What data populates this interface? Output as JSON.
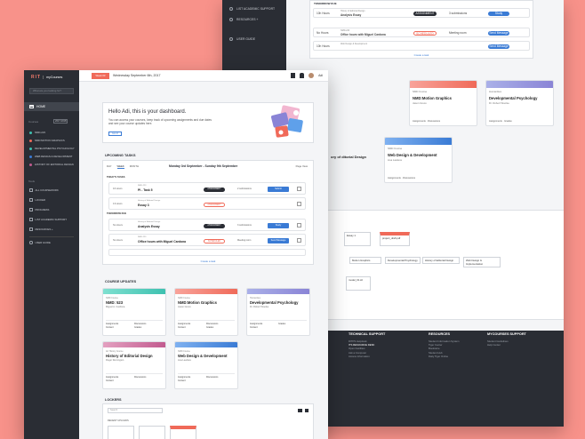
{
  "colors": {
    "accent": "#f06a59",
    "blue": "#3a7bd5",
    "sidebar": "#2a2d34",
    "bg": "#f8928a"
  },
  "back": {
    "sidebar_items": [
      "LIST ACADEMIC SUPPORT",
      "RESOURCES +",
      "USER GUIDE"
    ],
    "tomorrow_label": "TOMORROW DUE",
    "tasks": [
      {
        "due": "10h Hours",
        "course": "History of Editorial Design",
        "name": "Analysis Essay",
        "tag": "ASSIGNMENT",
        "sub": "3 submissions",
        "btn": "Study"
      },
      {
        "due": "No Hours",
        "course": "NMD-223",
        "name": "Office hours with Miguel Cardona",
        "tag": "SCHEDULED",
        "sub": "Meeting room",
        "btn": "Send Message"
      },
      {
        "due": "10h Hours",
        "course": "Web Design & Development",
        "name": "",
        "tag": "",
        "sub": "",
        "btn": "Send Message"
      }
    ],
    "create_task": "Create a task",
    "cards": [
      {
        "code": "NMD Course",
        "title": "NMD:Motion Graphics",
        "inst": "Jason Greco"
      },
      {
        "code": "Humanities",
        "title": "Developmental Psychology",
        "inst": "Dr. Robert Woolse"
      },
      {
        "code": "NMD Course",
        "title": "Web Design & Development",
        "inst": "Lisa Lawless"
      }
    ],
    "card_links": [
      "Assignments",
      "Discussions",
      "Content",
      "Grades"
    ],
    "partial_card_title": "ory of ditorial Design",
    "lockers": [
      "Essay 1",
      "project_draft.pdf",
      "Motion Graphics",
      "Developmental Psychology",
      "History of Editorial Design",
      "Web Design & Implementation",
      "model_01.stl"
    ],
    "footer": [
      {
        "heading": "TECHNICAL SUPPORT",
        "links": [
          "RITPS Helpdesk",
          "ITS RESOURCE DESK",
          "Open Facilities",
          "Ask a Computer",
          "Access Information"
        ]
      },
      {
        "heading": "RESOURCES",
        "links": [
          "Student Information System",
          "Tiger Center",
          "Bookstore",
          "Student Hub",
          "Daily Tiger Online"
        ]
      },
      {
        "heading": "MYCOURSES SUPPORT",
        "links": [
          "Student Guidelines",
          "Help Center"
        ]
      }
    ]
  },
  "app": {
    "logo": "RIT",
    "product": "myCourses",
    "search_placeholder": "What are you looking for?",
    "home": "HOME",
    "courses_label": "Courses",
    "term": "2017-2018",
    "courses": [
      {
        "name": "NMD-223",
        "color": "#3ec1b0"
      },
      {
        "name": "NMD:MOTION GRAPHICS",
        "color": "#f06a59"
      },
      {
        "name": "DEVELOPMENTAL PSYCHOLOGY",
        "color": "#3ec1b0"
      },
      {
        "name": "WEB DESIGN & DEVELOPMENT",
        "color": "#3a7bd5"
      },
      {
        "name": "HISTORY OF EDITORIAL DESIGN",
        "color": "#c25b8f"
      }
    ],
    "tools_label": "Tools",
    "nav": [
      "ALL COURSEWORK",
      "LOCKER",
      "PROGRESS",
      "LIST ACADEMIC SUPPORT",
      "RESOURCES +"
    ],
    "user_guide": "USER GUIDE",
    "week": "Week 03",
    "date": "Wednesday September 6th, 2017",
    "user": "Adi"
  },
  "hello": {
    "title": "Hello Adi, this is your dashboard.",
    "body": "You can access your courses, keep track of upcoming assignments and due dates and see your course updates here.",
    "button": "Got it!"
  },
  "upcoming": {
    "heading": "UPCOMING TASKS",
    "tabs": [
      "DAY",
      "WEEK",
      "MONTH"
    ],
    "range": "Monday 3rd September - Sunday 9th September",
    "filter": "Page View",
    "today": "TODAY'S TASKS",
    "tomorrow": "TOMORROW DUE",
    "tasks": [
      {
        "due": "10 Hours",
        "course": "NMD-223",
        "name": "PI - Task 5",
        "tag": "ASSIGNMENT",
        "sub": "2 submissions",
        "btn": "Submit"
      },
      {
        "due": "13 Hours",
        "course": "History of Editorial Design",
        "name": "Essay 3",
        "tag": "ASSIGNMENT",
        "sub": "",
        "btn": ""
      },
      {
        "due": "No Hours",
        "course": "History of Editorial Design",
        "name": "Analysis Essay",
        "tag": "ASSIGNMENT",
        "sub": "3 submissions",
        "btn": "Study"
      },
      {
        "due": "No Hours",
        "course": "NMD-223",
        "name": "Office hours with Miguel Cardona",
        "tag": "SCHEDULED",
        "sub": "Meeting room",
        "btn": "Send Message"
      }
    ],
    "create": "Create a task"
  },
  "updates": {
    "heading": "COURSE UPDATES",
    "cards": [
      {
        "code": "NMD Course",
        "title": "NMD: 523",
        "inst": "Miguel A. Cardona",
        "color": "#3ec1b0"
      },
      {
        "code": "NMD Course",
        "title": "NMD:Motion Graphics",
        "inst": "Jason Greco",
        "color": "#f06a59"
      },
      {
        "code": "Humanities",
        "title": "Developmental Psychology",
        "inst": "Dr. Robert Woolse",
        "color": "#8a84d6"
      },
      {
        "code": "Art History Course",
        "title": "History of Editorial Design",
        "inst": "Roger Remington",
        "color": "#c25b8f"
      },
      {
        "code": "NMD Course",
        "title": "Web Design & Development",
        "inst": "Lisa Lawless",
        "color": "#3a7bd5"
      }
    ],
    "links": [
      "Assignments",
      "Discussions",
      "Content",
      "Grades"
    ]
  },
  "lockers": {
    "heading": "LOCKERS",
    "search_placeholder": "Search",
    "recent": "RECENT UPLOADS"
  }
}
